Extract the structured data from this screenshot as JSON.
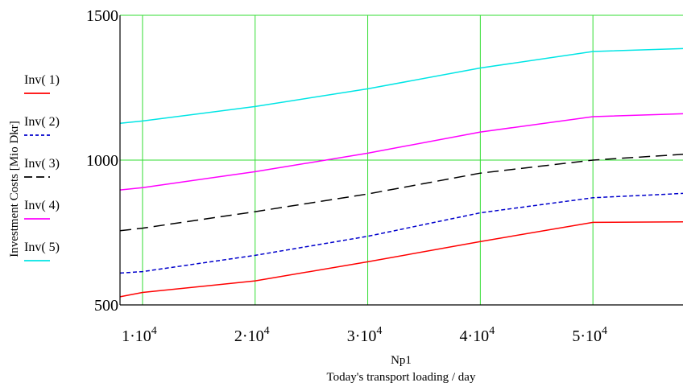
{
  "chart_data": {
    "type": "line",
    "xlabel": "Np1",
    "xlabel2": "Today's transport loading / day",
    "ylabel": "Investment Costs  [Mio Dkr]",
    "xlim": [
      8000,
      58000
    ],
    "ylim": [
      500,
      1500
    ],
    "grid": true,
    "grid_color": "#33dd33",
    "x_ticks": [
      10000,
      20000,
      30000,
      40000,
      50000
    ],
    "x_tick_labels": [
      {
        "base": "1·10",
        "exp": "4"
      },
      {
        "base": "2·10",
        "exp": "4"
      },
      {
        "base": "3·10",
        "exp": "4"
      },
      {
        "base": "4·10",
        "exp": "4"
      },
      {
        "base": "5·10",
        "exp": "4"
      }
    ],
    "y_ticks": [
      500,
      1000,
      1500
    ],
    "y_tick_labels": [
      "500",
      "1000",
      "1500"
    ],
    "legend_position": "left",
    "x": [
      8000,
      10000,
      20000,
      30000,
      40000,
      50000,
      58000
    ],
    "series": [
      {
        "name": "Inv( 1)",
        "color": "#ff0000",
        "dash": "solid",
        "values": [
          528,
          543,
          583,
          649,
          719,
          785,
          787
        ]
      },
      {
        "name": "Inv( 2)",
        "color": "#0000cc",
        "dash": "dotted",
        "values": [
          610,
          615,
          671,
          737,
          818,
          870,
          885
        ]
      },
      {
        "name": "Inv( 3)",
        "color": "#000000",
        "dash": "dashed",
        "values": [
          756,
          765,
          822,
          883,
          955,
          1000,
          1020
        ]
      },
      {
        "name": "Inv( 4)",
        "color": "#ff00ff",
        "dash": "solid",
        "values": [
          897,
          905,
          960,
          1024,
          1097,
          1150,
          1160
        ]
      },
      {
        "name": "Inv( 5)",
        "color": "#00e5e5",
        "dash": "solid",
        "values": [
          1127,
          1135,
          1185,
          1246,
          1318,
          1375,
          1385
        ]
      }
    ]
  }
}
